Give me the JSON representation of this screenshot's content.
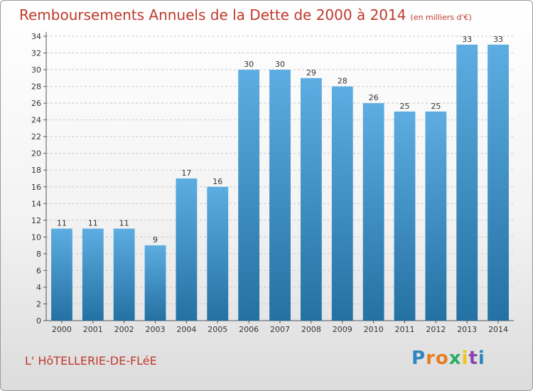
{
  "title": "Remboursements Annuels de la Dette de 2000 à 2014",
  "title_unit": "(en milliers d'€)",
  "commune": "L' HôTELLERIE-DE-FLéE",
  "logo": {
    "letters": [
      "P",
      "r",
      "o",
      "x",
      "i",
      "t",
      "i"
    ],
    "colors": [
      "#2e86c1",
      "#e67e22",
      "#e67e22",
      "#27ae60",
      "#f1c40f",
      "#8e44ad",
      "#2e86c1"
    ]
  },
  "colors": {
    "bar_top": "#5dade2",
    "bar_bottom": "#2471a3",
    "title": "#c0392b"
  },
  "chart_data": {
    "type": "bar",
    "title": "Remboursements Annuels de la Dette de 2000 à 2014",
    "categories": [
      "2000",
      "2001",
      "2002",
      "2003",
      "2004",
      "2005",
      "2006",
      "2007",
      "2008",
      "2009",
      "2010",
      "2011",
      "2012",
      "2013",
      "2014"
    ],
    "values": [
      11,
      11,
      11,
      9,
      17,
      16,
      30,
      30,
      29,
      28,
      26,
      25,
      25,
      33,
      33
    ],
    "ylim": [
      0,
      34
    ],
    "yticks": [
      0,
      2,
      4,
      6,
      8,
      10,
      12,
      14,
      16,
      18,
      20,
      22,
      24,
      26,
      28,
      30,
      32,
      34
    ],
    "grid": true,
    "xlabel": "",
    "ylabel": ""
  }
}
